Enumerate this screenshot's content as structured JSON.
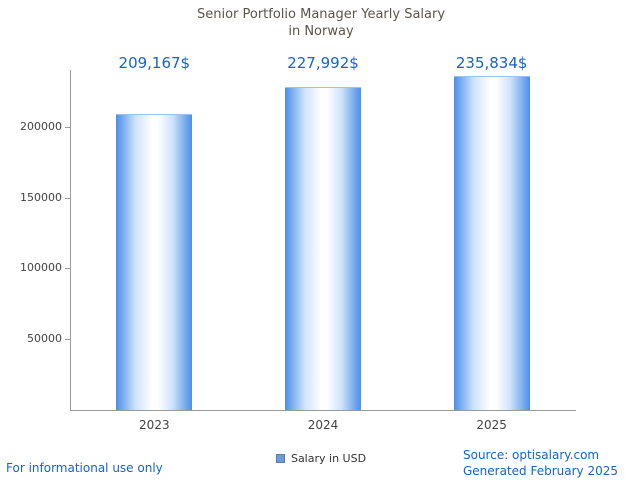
{
  "title": {
    "line1": "Senior Portfolio Manager Yearly Salary",
    "line2": "in Norway"
  },
  "legend": {
    "label": "Salary in USD"
  },
  "footer": {
    "left": "For informational use only",
    "source": "Source: optisalary.com",
    "generated": "Generated February 2025"
  },
  "colors": {
    "accent": "#1763c8",
    "title": "#5a544c",
    "axis": "#9a9a9a",
    "bar_edge": "#4b8fe8",
    "swatch": "#6f9bd4"
  },
  "chart_data": {
    "type": "bar",
    "title": "Senior Portfolio Manager Yearly Salary in Norway",
    "categories": [
      "2023",
      "2024",
      "2025"
    ],
    "values": [
      209167,
      227992,
      235834
    ],
    "value_labels": [
      "209,167$",
      "227,992$",
      "235,834$"
    ],
    "series_name": "Salary in USD",
    "xlabel": "",
    "ylabel": "",
    "ylim": [
      0,
      240000
    ],
    "yticks": [
      50000,
      100000,
      150000,
      200000
    ],
    "grid": false,
    "legend_position": "bottom-center"
  }
}
